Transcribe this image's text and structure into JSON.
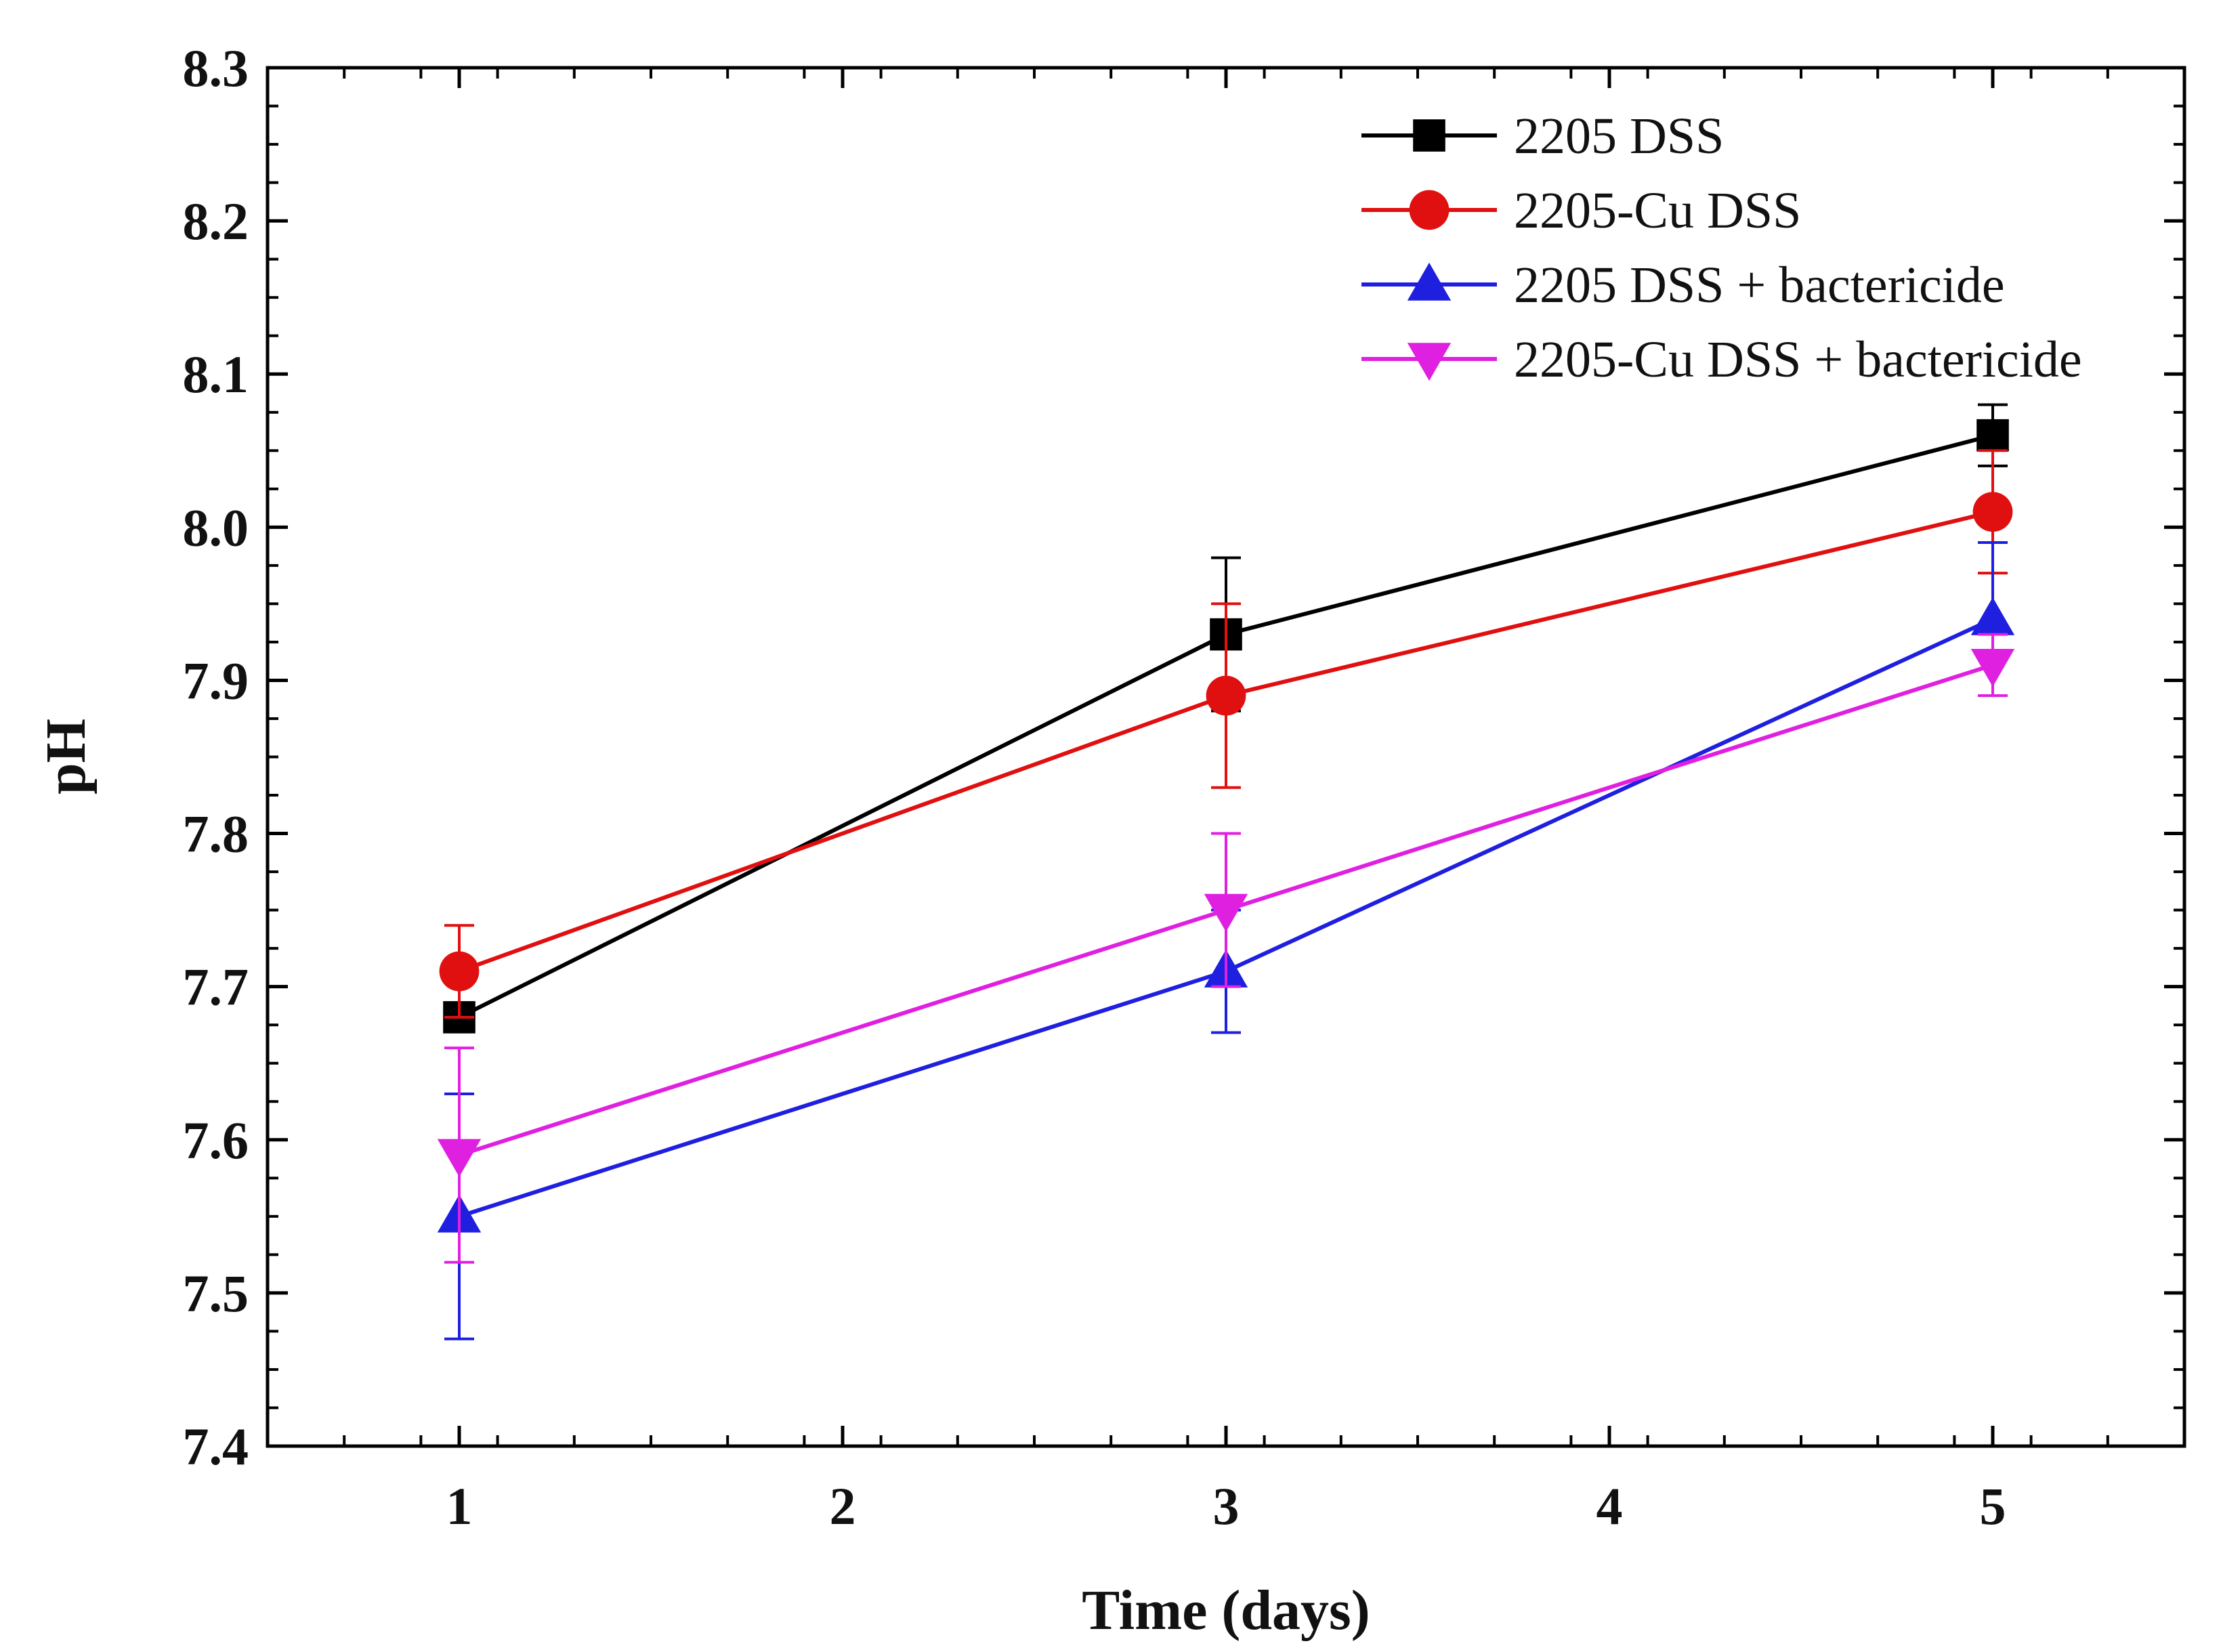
{
  "chart_data": {
    "type": "line",
    "title": "",
    "xlabel": "Time (days)",
    "ylabel": "pH",
    "xlim": [
      0.5,
      5.5
    ],
    "ylim": [
      7.4,
      8.3
    ],
    "x_ticks": [
      1,
      2,
      3,
      4,
      5
    ],
    "x_tick_labels": [
      "1",
      "2",
      "3",
      "4",
      "5"
    ],
    "y_ticks": [
      7.4,
      7.5,
      7.6,
      7.7,
      7.8,
      7.9,
      8.0,
      8.1,
      8.2,
      8.3
    ],
    "y_tick_labels": [
      "7.4",
      "7.5",
      "7.6",
      "7.7",
      "7.8",
      "7.9",
      "8.0",
      "8.1",
      "8.2",
      "8.3"
    ],
    "grid": false,
    "legend_position": "top-right",
    "x": [
      1,
      3,
      5
    ],
    "series": [
      {
        "name": "2205 DSS",
        "color": "#000000",
        "marker": "square",
        "values": [
          7.68,
          7.93,
          8.06
        ],
        "error": [
          0.0,
          0.05,
          0.02
        ]
      },
      {
        "name": "2205-Cu DSS",
        "color": "#e01010",
        "marker": "circle",
        "values": [
          7.71,
          7.89,
          8.01
        ],
        "error": [
          0.03,
          0.06,
          0.04
        ]
      },
      {
        "name": "2205 DSS + bactericide",
        "color": "#1f1fe0",
        "marker": "triangle-up",
        "values": [
          7.55,
          7.71,
          7.94
        ],
        "error": [
          0.08,
          0.04,
          0.05
        ]
      },
      {
        "name": "2205-Cu DSS + bactericide",
        "color": "#e020e0",
        "marker": "triangle-down",
        "values": [
          7.59,
          7.75,
          7.91
        ],
        "error": [
          0.07,
          0.05,
          0.02
        ]
      }
    ]
  }
}
